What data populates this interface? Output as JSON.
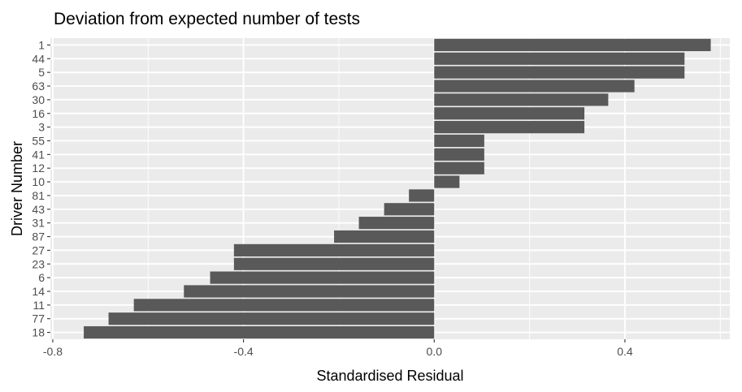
{
  "chart_data": {
    "type": "bar",
    "orientation": "horizontal",
    "title": "Deviation from expected number of tests",
    "xlabel": "Standardised Residual",
    "ylabel": "Driver Number",
    "xlim": [
      -0.805,
      0.62
    ],
    "xticks": [
      -0.8,
      -0.4,
      0.0,
      0.4
    ],
    "xtick_labels": [
      "-0.8",
      "-0.4",
      "0.0",
      "0.4"
    ],
    "grid": true,
    "categories": [
      "1",
      "44",
      "5",
      "63",
      "30",
      "16",
      "3",
      "55",
      "41",
      "12",
      "10",
      "81",
      "43",
      "31",
      "87",
      "27",
      "23",
      "6",
      "14",
      "11",
      "77",
      "18"
    ],
    "values": [
      0.58,
      0.525,
      0.525,
      0.42,
      0.365,
      0.315,
      0.315,
      0.105,
      0.105,
      0.105,
      0.053,
      -0.053,
      -0.105,
      -0.158,
      -0.21,
      -0.42,
      -0.42,
      -0.47,
      -0.525,
      -0.63,
      -0.683,
      -0.735
    ],
    "colors": {
      "bar": "#595959",
      "panel": "#ebebeb",
      "grid_major": "#ffffff",
      "tick": "#333333",
      "tick_label": "#4d4d4d"
    }
  }
}
